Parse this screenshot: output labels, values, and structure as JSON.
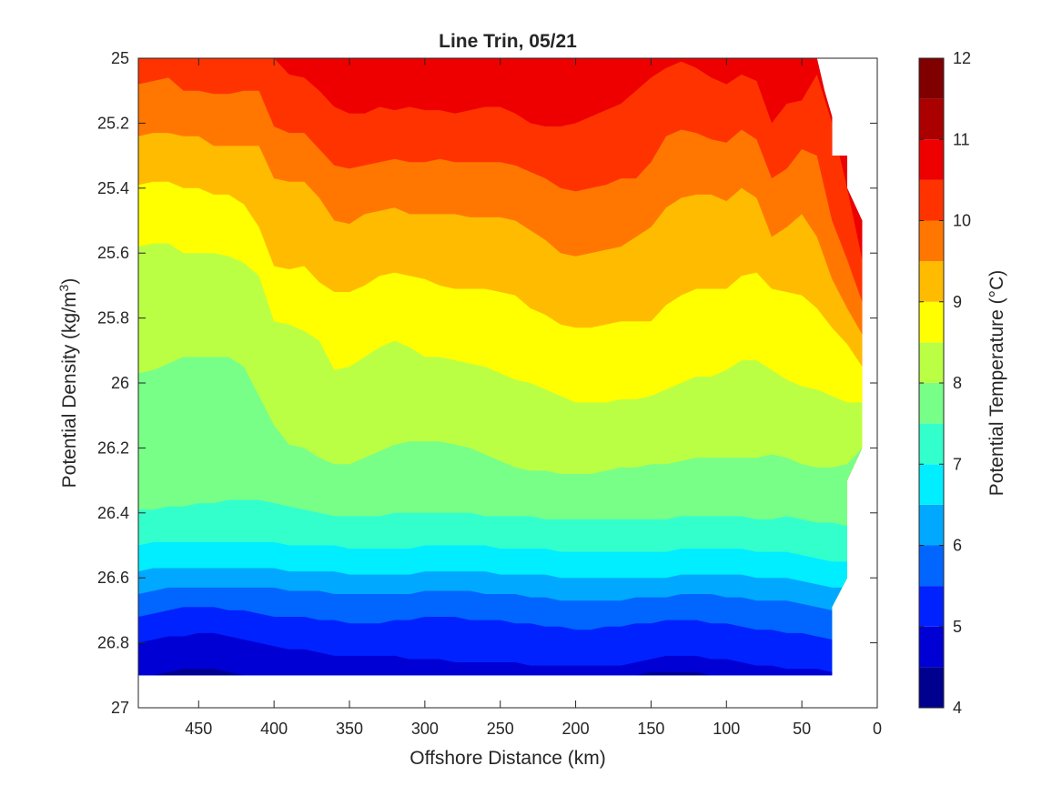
{
  "chart_data": {
    "type": "filled-contour",
    "title": "Line Trin, 05/21",
    "xlabel": "Offshore Distance (km)",
    "ylabel": "Potential Density (kg/m",
    "ylabel_sup": "3",
    "ylabel_end": ")",
    "colorbar_label": "Potential Temperature (°C)",
    "xlim": [
      490,
      0
    ],
    "ylim": [
      25,
      27
    ],
    "x_reversed": true,
    "y_reversed": true,
    "x_ticks": [
      450,
      400,
      350,
      300,
      250,
      200,
      150,
      100,
      50,
      0
    ],
    "y_ticks": [
      25,
      25.2,
      25.4,
      25.6,
      25.8,
      26,
      26.2,
      26.4,
      26.6,
      26.8,
      27
    ],
    "x_tick_labels": [
      "450",
      "400",
      "350",
      "300",
      "250",
      "200",
      "150",
      "100",
      "50",
      "0"
    ],
    "y_tick_labels": [
      "25",
      "25.2",
      "25.4",
      "25.6",
      "25.8",
      "26",
      "26.2",
      "26.4",
      "26.6",
      "26.8",
      "27"
    ],
    "colorbar_ticks": [
      4,
      5,
      6,
      7,
      8,
      9,
      10,
      11,
      12
    ],
    "colorbar_tick_labels": [
      "4",
      "5",
      "6",
      "7",
      "8",
      "9",
      "10",
      "11",
      "12"
    ],
    "levels": [
      4,
      4.5,
      5,
      5.5,
      6,
      6.5,
      7,
      7.5,
      8,
      8.5,
      9,
      9.5,
      10,
      10.5,
      11,
      11.5,
      12
    ],
    "level_colors": [
      "#00008f",
      "#0000d4",
      "#0022ff",
      "#0066ff",
      "#00a9ff",
      "#00eeff",
      "#33ffcc",
      "#77ff88",
      "#bbff44",
      "#ffff00",
      "#ffbb00",
      "#ff7700",
      "#ff3300",
      "#ee0000",
      "#aa0000",
      "#800000"
    ],
    "x": [
      490,
      480,
      470,
      460,
      450,
      440,
      430,
      420,
      410,
      400,
      390,
      380,
      370,
      360,
      350,
      340,
      330,
      320,
      310,
      300,
      290,
      280,
      270,
      260,
      250,
      240,
      230,
      220,
      210,
      200,
      190,
      180,
      170,
      160,
      150,
      140,
      130,
      120,
      110,
      100,
      90,
      80,
      70,
      60,
      50,
      40,
      30,
      20,
      10
    ],
    "contours": [
      {
        "level": 11.5,
        "sigma": [
          25.0,
          25.0,
          25.0,
          25.0,
          25.0,
          25.0,
          25.0,
          25.0,
          25.0,
          25.0,
          25.0,
          25.0,
          25.0,
          25.0,
          25.01,
          25.0,
          25.0,
          25.0,
          25.0,
          25.0,
          25.0,
          25.0,
          25.0,
          25.0,
          25.0,
          25.0,
          25.0,
          25.0,
          25.0,
          25.01,
          25.01,
          25.0,
          25.0,
          25.0,
          25.0,
          25.0,
          25.0,
          25.0,
          25.0,
          25.0,
          25.0,
          25.0,
          25.0,
          25.0,
          25.0,
          25.0,
          25.0,
          25.0,
          25.0
        ]
      },
      {
        "level": 11.0,
        "sigma": [
          25.0,
          25.0,
          25.0,
          25.0,
          25.0,
          25.0,
          25.0,
          25.0,
          25.0,
          25.0,
          25.0,
          25.0,
          25.0,
          25.0,
          25.0,
          25.0,
          25.0,
          25.0,
          25.0,
          25.0,
          25.0,
          25.0,
          25.0,
          25.0,
          25.0,
          25.0,
          25.0,
          25.0,
          25.0,
          25.0,
          25.0,
          25.0,
          25.0,
          25.0,
          25.0,
          25.0,
          25.0,
          25.0,
          25.0,
          25.0,
          25.0,
          25.0,
          25.0,
          25.0,
          25.0,
          25.0,
          25.08,
          25.3,
          25.5
        ]
      },
      {
        "level": 10.5,
        "sigma": [
          25.0,
          25.0,
          25.0,
          25.0,
          25.0,
          25.0,
          25.0,
          25.0,
          25.0,
          25.0,
          25.05,
          25.06,
          25.1,
          25.15,
          25.17,
          25.17,
          25.15,
          25.16,
          25.15,
          25.16,
          25.16,
          25.17,
          25.16,
          25.15,
          25.15,
          25.17,
          25.2,
          25.21,
          25.21,
          25.2,
          25.18,
          25.16,
          25.14,
          25.1,
          25.06,
          25.03,
          25.01,
          25.03,
          25.06,
          25.08,
          25.05,
          25.07,
          25.2,
          25.14,
          25.13,
          25.05,
          25.2,
          25.4,
          25.62
        ]
      },
      {
        "level": 10.0,
        "sigma": [
          25.08,
          25.07,
          25.06,
          25.1,
          25.1,
          25.11,
          25.11,
          25.1,
          25.1,
          25.21,
          25.23,
          25.23,
          25.28,
          25.33,
          25.34,
          25.33,
          25.32,
          25.31,
          25.32,
          25.32,
          25.31,
          25.32,
          25.32,
          25.32,
          25.32,
          25.33,
          25.35,
          25.37,
          25.4,
          25.41,
          25.4,
          25.39,
          25.37,
          25.37,
          25.32,
          25.24,
          25.22,
          25.23,
          25.25,
          25.26,
          25.22,
          25.25,
          25.37,
          25.34,
          25.28,
          25.3,
          25.5,
          25.62,
          25.75
        ]
      },
      {
        "level": 9.5,
        "sigma": [
          25.24,
          25.23,
          25.23,
          25.24,
          25.24,
          25.27,
          25.27,
          25.27,
          25.27,
          25.37,
          25.38,
          25.38,
          25.43,
          25.5,
          25.51,
          25.48,
          25.47,
          25.46,
          25.48,
          25.48,
          25.48,
          25.48,
          25.49,
          25.49,
          25.49,
          25.5,
          25.53,
          25.56,
          25.6,
          25.61,
          25.6,
          25.59,
          25.58,
          25.55,
          25.52,
          25.46,
          25.43,
          25.42,
          25.42,
          25.44,
          25.4,
          25.43,
          25.55,
          25.52,
          25.48,
          25.55,
          25.68,
          25.77,
          25.85
        ]
      },
      {
        "level": 9.0,
        "sigma": [
          25.39,
          25.38,
          25.38,
          25.4,
          25.4,
          25.42,
          25.42,
          25.45,
          25.52,
          25.64,
          25.65,
          25.64,
          25.69,
          25.72,
          25.72,
          25.7,
          25.67,
          25.66,
          25.67,
          25.68,
          25.7,
          25.71,
          25.71,
          25.71,
          25.72,
          25.73,
          25.77,
          25.79,
          25.82,
          25.83,
          25.83,
          25.82,
          25.81,
          25.81,
          25.81,
          25.76,
          25.73,
          25.71,
          25.71,
          25.71,
          25.67,
          25.66,
          25.71,
          25.72,
          25.73,
          25.77,
          25.83,
          25.88,
          25.95
        ]
      },
      {
        "level": 8.5,
        "sigma": [
          25.58,
          25.57,
          25.57,
          25.6,
          25.6,
          25.6,
          25.61,
          25.63,
          25.67,
          25.81,
          25.82,
          25.84,
          25.87,
          25.96,
          25.95,
          25.92,
          25.89,
          25.87,
          25.89,
          25.92,
          25.92,
          25.93,
          25.94,
          25.95,
          25.97,
          25.99,
          26.0,
          26.02,
          26.04,
          26.06,
          26.06,
          26.06,
          26.05,
          26.05,
          26.04,
          26.02,
          26.0,
          25.98,
          25.98,
          25.96,
          25.93,
          25.93,
          25.96,
          25.99,
          26.01,
          26.02,
          26.04,
          26.06,
          26.06
        ]
      },
      {
        "level": 8.0,
        "sigma": [
          25.97,
          25.96,
          25.94,
          25.92,
          25.92,
          25.92,
          25.92,
          25.95,
          26.04,
          26.13,
          26.19,
          26.2,
          26.23,
          26.25,
          26.25,
          26.23,
          26.21,
          26.19,
          26.18,
          26.18,
          26.18,
          26.19,
          26.2,
          26.22,
          26.24,
          26.26,
          26.27,
          26.27,
          26.28,
          26.28,
          26.28,
          26.27,
          26.26,
          26.26,
          26.25,
          26.25,
          26.24,
          26.23,
          26.23,
          26.23,
          26.23,
          26.23,
          26.22,
          26.23,
          26.25,
          26.26,
          26.26,
          26.25,
          26.2
        ]
      },
      {
        "level": 7.5,
        "sigma": [
          26.39,
          26.39,
          26.38,
          26.38,
          26.37,
          26.37,
          26.36,
          26.36,
          26.36,
          26.37,
          26.38,
          26.39,
          26.4,
          26.41,
          26.41,
          26.41,
          26.41,
          26.4,
          26.4,
          26.4,
          26.4,
          26.4,
          26.4,
          26.41,
          26.41,
          26.41,
          26.41,
          26.42,
          26.42,
          26.42,
          26.42,
          26.42,
          26.42,
          26.42,
          26.42,
          26.42,
          26.41,
          26.41,
          26.41,
          26.41,
          26.41,
          26.42,
          26.42,
          26.41,
          26.42,
          26.43,
          26.43,
          26.44,
          26.45
        ]
      },
      {
        "level": 7.0,
        "sigma": [
          26.5,
          26.49,
          26.49,
          26.49,
          26.49,
          26.49,
          26.49,
          26.49,
          26.49,
          26.49,
          26.5,
          26.5,
          26.5,
          26.5,
          26.51,
          26.51,
          26.51,
          26.51,
          26.51,
          26.5,
          26.5,
          26.5,
          26.5,
          26.5,
          26.51,
          26.51,
          26.51,
          26.51,
          26.52,
          26.52,
          26.52,
          26.52,
          26.52,
          26.52,
          26.52,
          26.52,
          26.51,
          26.51,
          26.51,
          26.51,
          26.51,
          26.52,
          26.52,
          26.52,
          26.53,
          26.54,
          26.55,
          26.55,
          26.56
        ]
      },
      {
        "level": 6.5,
        "sigma": [
          26.58,
          26.57,
          26.57,
          26.57,
          26.57,
          26.57,
          26.57,
          26.57,
          26.57,
          26.57,
          26.58,
          26.58,
          26.58,
          26.58,
          26.59,
          26.59,
          26.59,
          26.59,
          26.59,
          26.58,
          26.58,
          26.58,
          26.58,
          26.58,
          26.59,
          26.59,
          26.59,
          26.59,
          26.6,
          26.6,
          26.6,
          26.6,
          26.6,
          26.6,
          26.6,
          26.6,
          26.59,
          26.59,
          26.59,
          26.59,
          26.59,
          26.6,
          26.6,
          26.6,
          26.61,
          26.62,
          26.63,
          26.63,
          26.64
        ]
      },
      {
        "level": 6.0,
        "sigma": [
          26.65,
          26.64,
          26.63,
          26.63,
          26.63,
          26.63,
          26.63,
          26.63,
          26.63,
          26.63,
          26.64,
          26.64,
          26.64,
          26.65,
          26.65,
          26.65,
          26.65,
          26.65,
          26.65,
          26.64,
          26.64,
          26.64,
          26.64,
          26.65,
          26.65,
          26.65,
          26.66,
          26.66,
          26.67,
          26.67,
          26.67,
          26.67,
          26.67,
          26.66,
          26.66,
          26.66,
          26.65,
          26.65,
          26.65,
          26.66,
          26.66,
          26.67,
          26.67,
          26.67,
          26.68,
          26.69,
          26.7,
          26.7,
          26.71
        ]
      },
      {
        "level": 5.5,
        "sigma": [
          26.72,
          26.71,
          26.7,
          26.69,
          26.69,
          26.69,
          26.7,
          26.7,
          26.71,
          26.72,
          26.72,
          26.72,
          26.73,
          26.73,
          26.74,
          26.74,
          26.74,
          26.73,
          26.73,
          26.72,
          26.72,
          26.72,
          26.73,
          26.73,
          26.73,
          26.74,
          26.74,
          26.75,
          26.75,
          26.76,
          26.76,
          26.75,
          26.75,
          26.74,
          26.74,
          26.73,
          26.73,
          26.73,
          26.74,
          26.74,
          26.75,
          26.76,
          26.76,
          26.77,
          26.77,
          26.78,
          26.79,
          26.79,
          26.8
        ]
      },
      {
        "level": 5.0,
        "sigma": [
          26.8,
          26.79,
          26.78,
          26.78,
          26.77,
          26.77,
          26.78,
          26.79,
          26.8,
          26.81,
          26.82,
          26.82,
          26.83,
          26.84,
          26.84,
          26.84,
          26.84,
          26.84,
          26.85,
          26.85,
          26.85,
          26.86,
          26.86,
          26.86,
          26.86,
          26.86,
          26.87,
          26.87,
          26.87,
          26.87,
          26.87,
          26.87,
          26.87,
          26.86,
          26.85,
          26.84,
          26.84,
          26.84,
          26.85,
          26.85,
          26.86,
          26.87,
          26.87,
          26.88,
          26.88,
          26.88,
          26.89,
          26.89,
          26.89
        ]
      },
      {
        "level": 4.5,
        "sigma": [
          26.9,
          26.9,
          26.89,
          26.88,
          26.88,
          26.88,
          26.89,
          26.9,
          26.9,
          26.9,
          26.9,
          26.9,
          26.9,
          26.9,
          26.9,
          26.9,
          26.9,
          26.9,
          26.9,
          26.9,
          26.9,
          26.9,
          26.9,
          26.9,
          26.9,
          26.9,
          26.9,
          26.9,
          26.9,
          26.9,
          26.9,
          26.9,
          26.9,
          26.9,
          26.89,
          26.89,
          26.89,
          26.89,
          26.9,
          26.9,
          26.9,
          26.9,
          26.9,
          26.9,
          26.9,
          26.9,
          26.9,
          26.9,
          26.9
        ]
      }
    ],
    "data_bounds": {
      "x_far": 490,
      "sigma_top": 25.0,
      "sigma_bottom": 26.9,
      "nearshore_edge": [
        [
          40,
          25.0
        ],
        [
          35,
          25.1
        ],
        [
          30,
          25.18
        ],
        [
          30,
          25.3
        ],
        [
          20,
          25.3
        ],
        [
          20,
          25.4
        ],
        [
          10,
          25.5
        ],
        [
          10,
          26.2
        ],
        [
          20,
          26.3
        ],
        [
          20,
          26.6
        ],
        [
          30,
          26.69
        ],
        [
          30,
          26.9
        ]
      ]
    }
  }
}
